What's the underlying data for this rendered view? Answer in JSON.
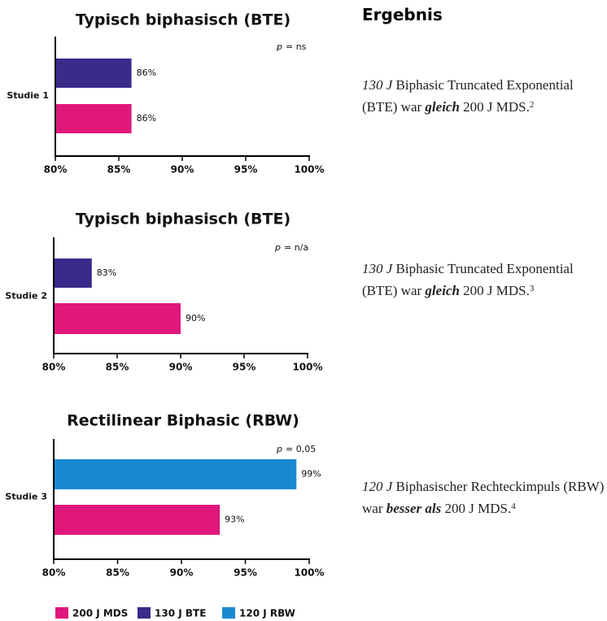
{
  "chart_data": [
    {
      "type": "bar",
      "orientation": "horizontal",
      "title": "Typisch biphasisch (BTE)",
      "categories": [
        "Studie 1"
      ],
      "series": [
        {
          "name": "130 J BTE",
          "color": "#3b2a8a",
          "values": [
            86
          ],
          "value_labels": [
            "86%"
          ]
        },
        {
          "name": "200 J MDS",
          "color": "#e0187c",
          "values": [
            86
          ],
          "value_labels": [
            "86%"
          ]
        }
      ],
      "xlim": [
        80,
        100
      ],
      "xticks": [
        {
          "value": 80,
          "label": "80%"
        },
        {
          "value": 85,
          "label": "85%"
        },
        {
          "value": 90,
          "label": "90%"
        },
        {
          "value": 95,
          "label": "95%"
        },
        {
          "value": 100,
          "label": "100%"
        }
      ],
      "annotation": {
        "symbol": "p",
        "text": "= ns"
      }
    },
    {
      "type": "bar",
      "orientation": "horizontal",
      "title": "Typisch biphasisch (BTE)",
      "categories": [
        "Studie 2"
      ],
      "series": [
        {
          "name": "130 J BTE",
          "color": "#3b2a8a",
          "values": [
            83
          ],
          "value_labels": [
            "83%"
          ]
        },
        {
          "name": "200 J MDS",
          "color": "#e0187c",
          "values": [
            90
          ],
          "value_labels": [
            "90%"
          ]
        }
      ],
      "xlim": [
        80,
        100
      ],
      "xticks": [
        {
          "value": 80,
          "label": "80%"
        },
        {
          "value": 85,
          "label": "85%"
        },
        {
          "value": 90,
          "label": "90%"
        },
        {
          "value": 95,
          "label": "95%"
        },
        {
          "value": 100,
          "label": "100%"
        }
      ],
      "annotation": {
        "symbol": "p",
        "text": "= n/a"
      }
    },
    {
      "type": "bar",
      "orientation": "horizontal",
      "title": "Rectilinear Biphasic (RBW)",
      "categories": [
        "Studie 3"
      ],
      "series": [
        {
          "name": "120 J RBW",
          "color": "#1a8ad0",
          "values": [
            99
          ],
          "value_labels": [
            "99%"
          ]
        },
        {
          "name": "200 J MDS",
          "color": "#e0187c",
          "values": [
            93
          ],
          "value_labels": [
            "93%"
          ]
        }
      ],
      "xlim": [
        80,
        100
      ],
      "xticks": [
        {
          "value": 80,
          "label": "80%"
        },
        {
          "value": 85,
          "label": "85%"
        },
        {
          "value": 90,
          "label": "90%"
        },
        {
          "value": 95,
          "label": "95%"
        },
        {
          "value": 100,
          "label": "100%"
        }
      ],
      "annotation": {
        "symbol": "p",
        "text": "= 0,05"
      }
    }
  ],
  "results": {
    "title": "Ergebnis",
    "items": [
      [
        {
          "text": "130 J",
          "style": "italic"
        },
        {
          "text": " Biphasic Truncated Exponential (BTE) war ",
          "style": "normal"
        },
        {
          "text": "gleich",
          "style": "bold-italic"
        },
        {
          "text": " 200 J MDS.",
          "style": "normal"
        },
        {
          "text": "2",
          "style": "sup"
        }
      ],
      [
        {
          "text": "130 J",
          "style": "italic"
        },
        {
          "text": " Biphasic Truncated Exponential (BTE) war ",
          "style": "normal"
        },
        {
          "text": "gleich",
          "style": "bold-italic"
        },
        {
          "text": " 200 J MDS.",
          "style": "normal"
        },
        {
          "text": "3",
          "style": "sup"
        }
      ],
      [
        {
          "text": "120 J",
          "style": "italic"
        },
        {
          "text": " Biphasischer Rechteckimpuls (RBW) war ",
          "style": "normal"
        },
        {
          "text": "besser als",
          "style": "bold-italic"
        },
        {
          "text": " 200 J MDS.",
          "style": "normal"
        },
        {
          "text": "4",
          "style": "sup"
        }
      ]
    ]
  }
}
